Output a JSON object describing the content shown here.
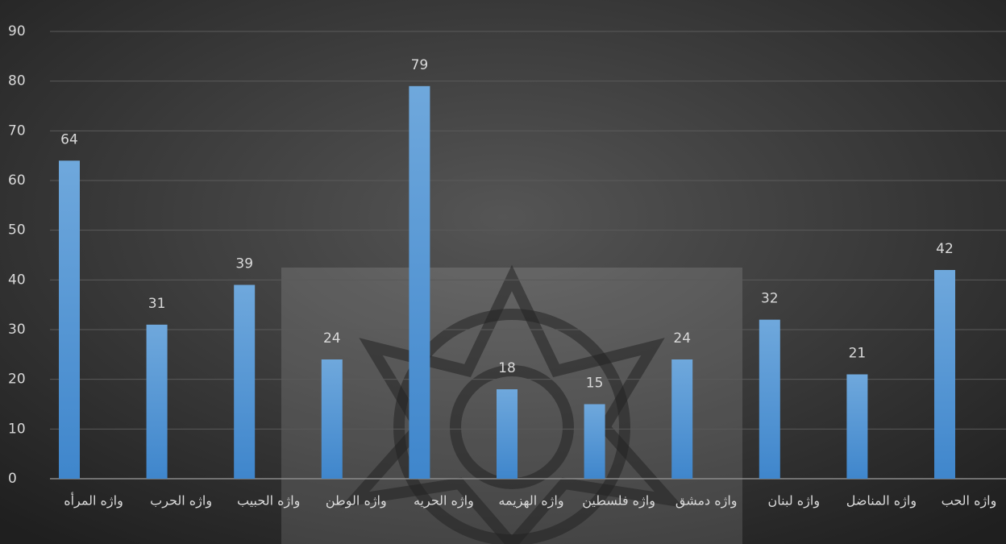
{
  "chart_data": {
    "type": "bar",
    "categories": [
      "واژه المرأه",
      "واژه الحرب",
      "واژه الحبيب",
      "واژه الوطن",
      "واژه الحريه",
      "واژه الهزيمه",
      "واژه فلسطين",
      "واژه دمشق",
      "واژه لبنان",
      "واژه المناضل",
      "واژه الحب"
    ],
    "values": [
      64,
      31,
      39,
      24,
      79,
      18,
      15,
      24,
      32,
      21,
      42
    ],
    "color": "#5b9bd5",
    "ylim": [
      0,
      90
    ],
    "yticks": [
      0,
      10,
      20,
      30,
      40,
      50,
      60,
      70,
      80,
      90
    ],
    "grid": true
  }
}
